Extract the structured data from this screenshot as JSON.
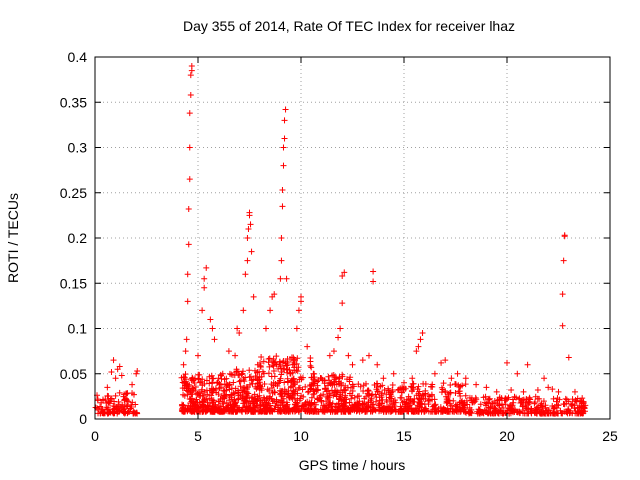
{
  "chart_data": {
    "type": "scatter",
    "title": "Day 355 of 2014, Rate Of TEC Index for receiver lhaz",
    "xlabel": "GPS time / hours",
    "ylabel": "ROTI / TECUs",
    "xlim": [
      0,
      25
    ],
    "ylim": [
      0,
      0.4
    ],
    "xticks": [
      0,
      5,
      10,
      15,
      20,
      25
    ],
    "xtick_labels": [
      "0",
      "5",
      "10",
      "15",
      "20",
      "25"
    ],
    "yticks": [
      0,
      0.05,
      0.1,
      0.15,
      0.2,
      0.25,
      0.3,
      0.35,
      0.4
    ],
    "ytick_labels": [
      "0",
      "0.05",
      "0.1",
      "0.15",
      "0.2",
      "0.25",
      "0.3",
      "0.35",
      "0.4"
    ],
    "grid": true,
    "marker": "+",
    "color": "#ff0000",
    "seed": 355,
    "data_gaps_hours": [
      [
        2.1,
        4.2
      ],
      [
        23.8,
        25
      ]
    ],
    "series": [
      {
        "name": "ROTI",
        "points": [
          [
            0.1,
            0.012
          ],
          [
            0.3,
            0.018
          ],
          [
            0.5,
            0.022
          ],
          [
            0.6,
            0.035
          ],
          [
            0.8,
            0.052
          ],
          [
            0.9,
            0.065
          ],
          [
            1.0,
            0.045
          ],
          [
            1.1,
            0.055
          ],
          [
            1.2,
            0.058
          ],
          [
            1.3,
            0.048
          ],
          [
            1.5,
            0.028
          ],
          [
            1.8,
            0.038
          ],
          [
            2.0,
            0.05
          ],
          [
            2.05,
            0.053
          ],
          [
            4.3,
            0.06
          ],
          [
            4.4,
            0.075
          ],
          [
            4.45,
            0.088
          ],
          [
            4.5,
            0.13
          ],
          [
            4.5,
            0.16
          ],
          [
            4.55,
            0.193
          ],
          [
            4.55,
            0.232
          ],
          [
            4.6,
            0.265
          ],
          [
            4.6,
            0.3
          ],
          [
            4.6,
            0.338
          ],
          [
            4.65,
            0.358
          ],
          [
            4.65,
            0.38
          ],
          [
            4.7,
            0.385
          ],
          [
            4.7,
            0.39
          ],
          [
            5.0,
            0.07
          ],
          [
            5.2,
            0.12
          ],
          [
            5.3,
            0.145
          ],
          [
            5.3,
            0.155
          ],
          [
            5.4,
            0.167
          ],
          [
            5.6,
            0.11
          ],
          [
            5.7,
            0.1
          ],
          [
            5.8,
            0.088
          ],
          [
            6.0,
            0.045
          ],
          [
            6.5,
            0.075
          ],
          [
            6.8,
            0.07
          ],
          [
            6.9,
            0.1
          ],
          [
            7.0,
            0.095
          ],
          [
            7.2,
            0.12
          ],
          [
            7.3,
            0.16
          ],
          [
            7.4,
            0.175
          ],
          [
            7.4,
            0.2
          ],
          [
            7.45,
            0.21
          ],
          [
            7.5,
            0.225
          ],
          [
            7.5,
            0.228
          ],
          [
            7.55,
            0.215
          ],
          [
            7.6,
            0.185
          ],
          [
            7.7,
            0.135
          ],
          [
            7.9,
            0.06
          ],
          [
            8.3,
            0.1
          ],
          [
            8.5,
            0.12
          ],
          [
            8.6,
            0.135
          ],
          [
            8.7,
            0.138
          ],
          [
            9.0,
            0.155
          ],
          [
            9.05,
            0.175
          ],
          [
            9.05,
            0.2
          ],
          [
            9.1,
            0.235
          ],
          [
            9.1,
            0.253
          ],
          [
            9.15,
            0.28
          ],
          [
            9.15,
            0.3
          ],
          [
            9.2,
            0.31
          ],
          [
            9.2,
            0.33
          ],
          [
            9.25,
            0.342
          ],
          [
            9.3,
            0.155
          ],
          [
            9.6,
            0.06
          ],
          [
            9.8,
            0.1
          ],
          [
            9.9,
            0.12
          ],
          [
            10.0,
            0.13
          ],
          [
            10.0,
            0.135
          ],
          [
            10.3,
            0.08
          ],
          [
            10.6,
            0.05
          ],
          [
            11.0,
            0.045
          ],
          [
            11.4,
            0.07
          ],
          [
            11.6,
            0.075
          ],
          [
            11.8,
            0.09
          ],
          [
            11.9,
            0.1
          ],
          [
            12.0,
            0.128
          ],
          [
            12.0,
            0.158
          ],
          [
            12.1,
            0.162
          ],
          [
            12.3,
            0.07
          ],
          [
            12.5,
            0.06
          ],
          [
            13.0,
            0.065
          ],
          [
            13.3,
            0.07
          ],
          [
            13.5,
            0.152
          ],
          [
            13.5,
            0.163
          ],
          [
            13.7,
            0.06
          ],
          [
            14.0,
            0.045
          ],
          [
            14.5,
            0.05
          ],
          [
            15.0,
            0.04
          ],
          [
            15.4,
            0.045
          ],
          [
            15.6,
            0.075
          ],
          [
            15.7,
            0.08
          ],
          [
            15.8,
            0.088
          ],
          [
            15.9,
            0.095
          ],
          [
            16.5,
            0.05
          ],
          [
            16.8,
            0.062
          ],
          [
            17.0,
            0.065
          ],
          [
            17.3,
            0.045
          ],
          [
            17.6,
            0.05
          ],
          [
            18.0,
            0.045
          ],
          [
            18.5,
            0.038
          ],
          [
            19.0,
            0.035
          ],
          [
            19.5,
            0.03
          ],
          [
            20.0,
            0.062
          ],
          [
            20.2,
            0.032
          ],
          [
            20.5,
            0.05
          ],
          [
            20.8,
            0.03
          ],
          [
            21.0,
            0.06
          ],
          [
            21.5,
            0.032
          ],
          [
            21.8,
            0.045
          ],
          [
            22.0,
            0.035
          ],
          [
            22.2,
            0.033
          ],
          [
            22.5,
            0.03
          ],
          [
            22.7,
            0.103
          ],
          [
            22.7,
            0.138
          ],
          [
            22.75,
            0.175
          ],
          [
            22.8,
            0.202
          ],
          [
            22.8,
            0.203
          ],
          [
            23.0,
            0.068
          ],
          [
            23.3,
            0.03
          ],
          [
            23.6,
            0.02
          ],
          [
            23.8,
            0.015
          ]
        ]
      }
    ],
    "background_bands": [
      {
        "x": [
          0.0,
          2.1
        ],
        "floor": 0.006,
        "ceiling": 0.03,
        "density": 120
      },
      {
        "x": [
          4.2,
          6.0
        ],
        "floor": 0.008,
        "ceiling": 0.05,
        "density": 240
      },
      {
        "x": [
          6.0,
          8.0
        ],
        "floor": 0.008,
        "ceiling": 0.055,
        "density": 260
      },
      {
        "x": [
          8.0,
          10.5
        ],
        "floor": 0.008,
        "ceiling": 0.07,
        "density": 320
      },
      {
        "x": [
          10.5,
          12.5
        ],
        "floor": 0.008,
        "ceiling": 0.05,
        "density": 220
      },
      {
        "x": [
          12.5,
          15.0
        ],
        "floor": 0.008,
        "ceiling": 0.04,
        "density": 200
      },
      {
        "x": [
          15.0,
          18.0
        ],
        "floor": 0.008,
        "ceiling": 0.04,
        "density": 230
      },
      {
        "x": [
          18.0,
          21.0
        ],
        "floor": 0.006,
        "ceiling": 0.025,
        "density": 170
      },
      {
        "x": [
          21.0,
          23.8
        ],
        "floor": 0.006,
        "ceiling": 0.025,
        "density": 160
      }
    ]
  }
}
